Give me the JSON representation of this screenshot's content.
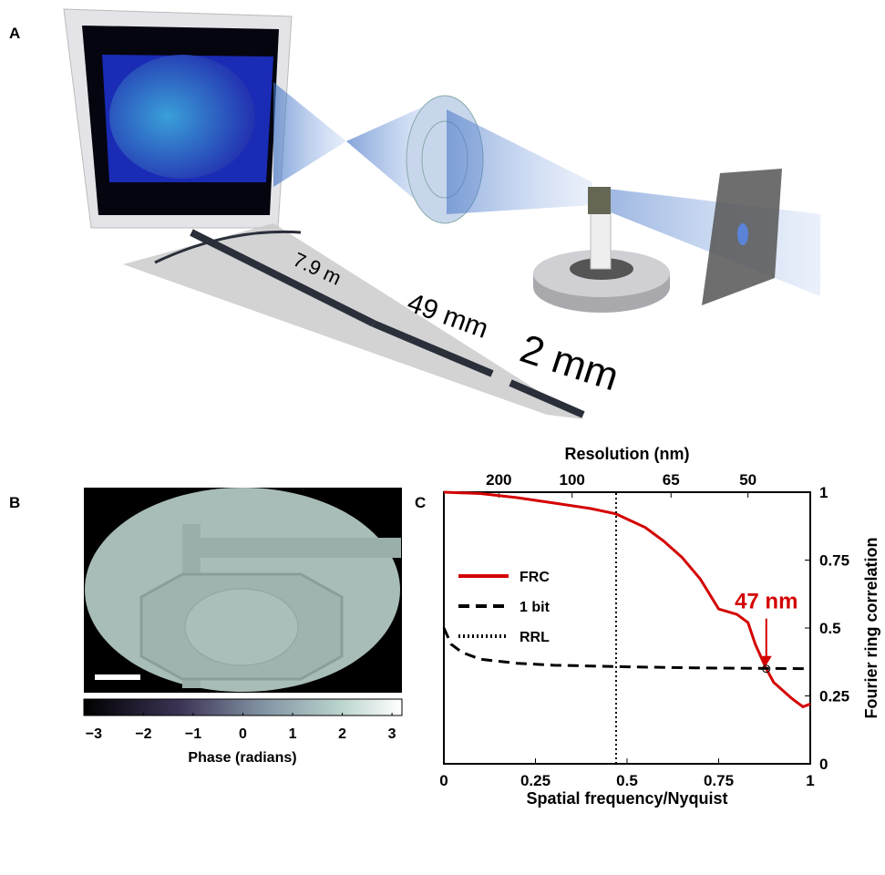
{
  "figure": {
    "panel_a": {
      "label": "A",
      "dist1": "7.9 m",
      "dist2": "49 mm",
      "dist3": "2 mm"
    },
    "panel_b": {
      "label": "B",
      "colorbar": {
        "lim": [
          -3.2,
          3.2
        ],
        "ticks": [
          {
            "value": -3,
            "label": "−3"
          },
          {
            "value": -2,
            "label": "−2"
          },
          {
            "value": -1,
            "label": "−1"
          },
          0,
          1,
          2,
          3
        ],
        "label": "Phase (radians)"
      }
    },
    "panel_c": {
      "label": "C"
    }
  },
  "chart_data": {
    "type": "line",
    "xlabel": "Spatial frequency/Nyquist",
    "ylabel": "Fourier ring correlation",
    "x2label": "Resolution (nm)",
    "xlim": [
      0,
      1
    ],
    "ylim": [
      0,
      1
    ],
    "xticks": [
      0,
      0.25,
      0.5,
      0.75,
      1
    ],
    "yticks": [
      0,
      0.25,
      0.5,
      0.75,
      1
    ],
    "x2ticks": [
      {
        "value": 0.15,
        "label": "200"
      },
      {
        "value": 0.35,
        "label": "100"
      },
      {
        "value": 0.62,
        "label": "65"
      },
      {
        "value": 0.83,
        "label": "50"
      }
    ],
    "series": [
      {
        "name": "FRC",
        "color": "#d40000",
        "style": "solid",
        "x": [
          0,
          0.1,
          0.2,
          0.3,
          0.4,
          0.47,
          0.55,
          0.6,
          0.65,
          0.7,
          0.75,
          0.8,
          0.83,
          0.85,
          0.88,
          0.9,
          0.95,
          0.98,
          1
        ],
        "values": [
          1,
          0.995,
          0.98,
          0.96,
          0.94,
          0.92,
          0.87,
          0.82,
          0.76,
          0.68,
          0.57,
          0.55,
          0.52,
          0.44,
          0.35,
          0.3,
          0.24,
          0.21,
          0.22
        ]
      },
      {
        "name": "1 bit",
        "color": "#000000",
        "style": "dashed",
        "x": [
          0,
          0.02,
          0.05,
          0.1,
          0.2,
          0.3,
          0.5,
          0.7,
          1
        ],
        "values": [
          0.5,
          0.44,
          0.41,
          0.385,
          0.37,
          0.363,
          0.357,
          0.353,
          0.35
        ]
      },
      {
        "name": "RRL",
        "color": "#000000",
        "style": "dotted",
        "x": [
          0.47,
          0.47
        ],
        "values": [
          0,
          1
        ]
      }
    ],
    "annotation": {
      "text": "47 nm",
      "x": 0.88,
      "y": 0.35,
      "color": "#d40000"
    }
  }
}
